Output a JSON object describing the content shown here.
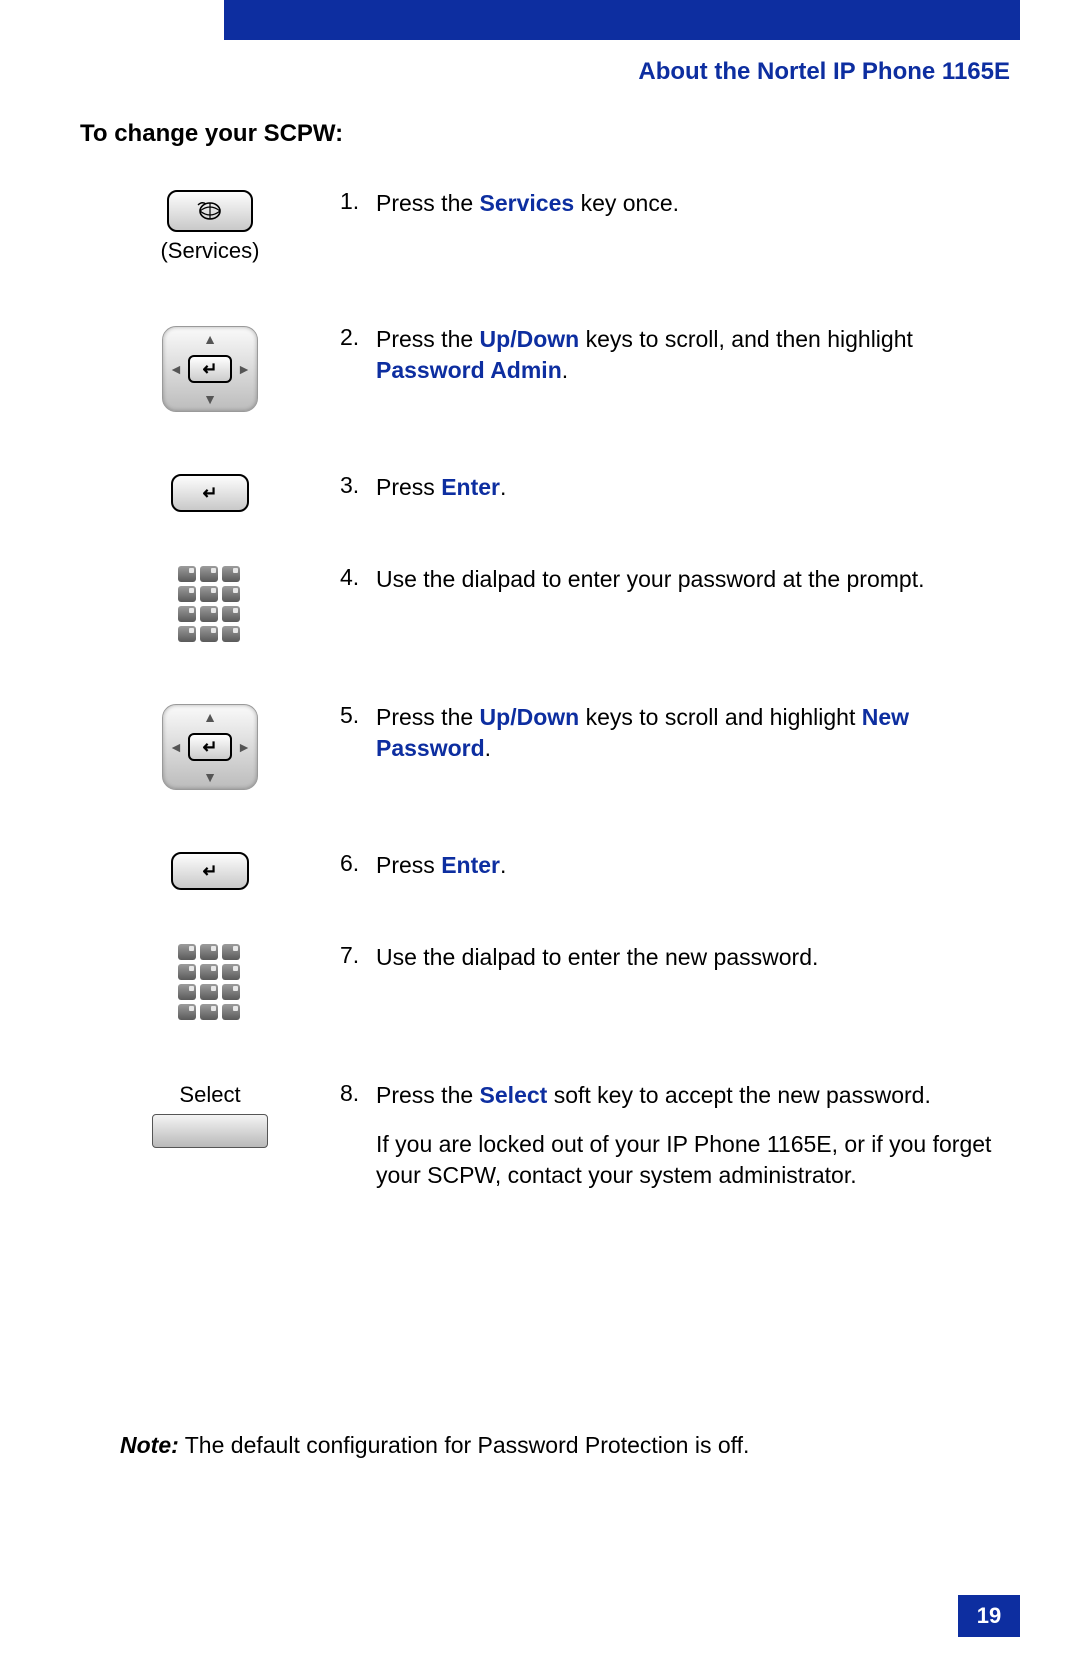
{
  "colors": {
    "brand_blue": "#0d2ea0",
    "text_black": "#000000",
    "page_bg": "#ffffff"
  },
  "header": {
    "running_title": "About the Nortel IP Phone 1165E"
  },
  "section": {
    "title": "To change your SCPW:"
  },
  "icons": {
    "services_label": "(Services)",
    "select_label": "Select"
  },
  "steps": [
    {
      "num": "1.",
      "icon": "services",
      "parts": [
        {
          "t": "Press the "
        },
        {
          "t": "Services",
          "kw": true
        },
        {
          "t": " key once."
        }
      ]
    },
    {
      "num": "2.",
      "icon": "navpad",
      "parts": [
        {
          "t": "Press the "
        },
        {
          "t": "Up/Down",
          "kw": true
        },
        {
          "t": " keys to scroll, and then highlight "
        },
        {
          "t": "Password Admin",
          "kw": true
        },
        {
          "t": "."
        }
      ]
    },
    {
      "num": "3.",
      "icon": "enter",
      "parts": [
        {
          "t": "Press "
        },
        {
          "t": "Enter",
          "kw": true
        },
        {
          "t": "."
        }
      ]
    },
    {
      "num": "4.",
      "icon": "dialpad",
      "parts": [
        {
          "t": "Use the dialpad to enter your password at the prompt."
        }
      ]
    },
    {
      "num": "5.",
      "icon": "navpad",
      "parts": [
        {
          "t": "Press the "
        },
        {
          "t": "Up/Down",
          "kw": true
        },
        {
          "t": " keys to scroll and highlight "
        },
        {
          "t": "New Password",
          "kw": true
        },
        {
          "t": "."
        }
      ]
    },
    {
      "num": "6.",
      "icon": "enter",
      "parts": [
        {
          "t": "Press "
        },
        {
          "t": "Enter",
          "kw": true
        },
        {
          "t": "."
        }
      ]
    },
    {
      "num": "7.",
      "icon": "dialpad",
      "parts": [
        {
          "t": "Use the dialpad to enter the new password."
        }
      ]
    },
    {
      "num": "8.",
      "icon": "select",
      "parts": [
        {
          "t": "Press the "
        },
        {
          "t": "Select",
          "kw": true
        },
        {
          "t": " soft key to accept the new password."
        }
      ],
      "extra": "If you are locked out of your IP Phone 1165E, or if you forget your SCPW, contact your system administrator."
    }
  ],
  "note": {
    "label": "Note:",
    "text": " The default configuration for Password Protection is off."
  },
  "page_number": "19"
}
